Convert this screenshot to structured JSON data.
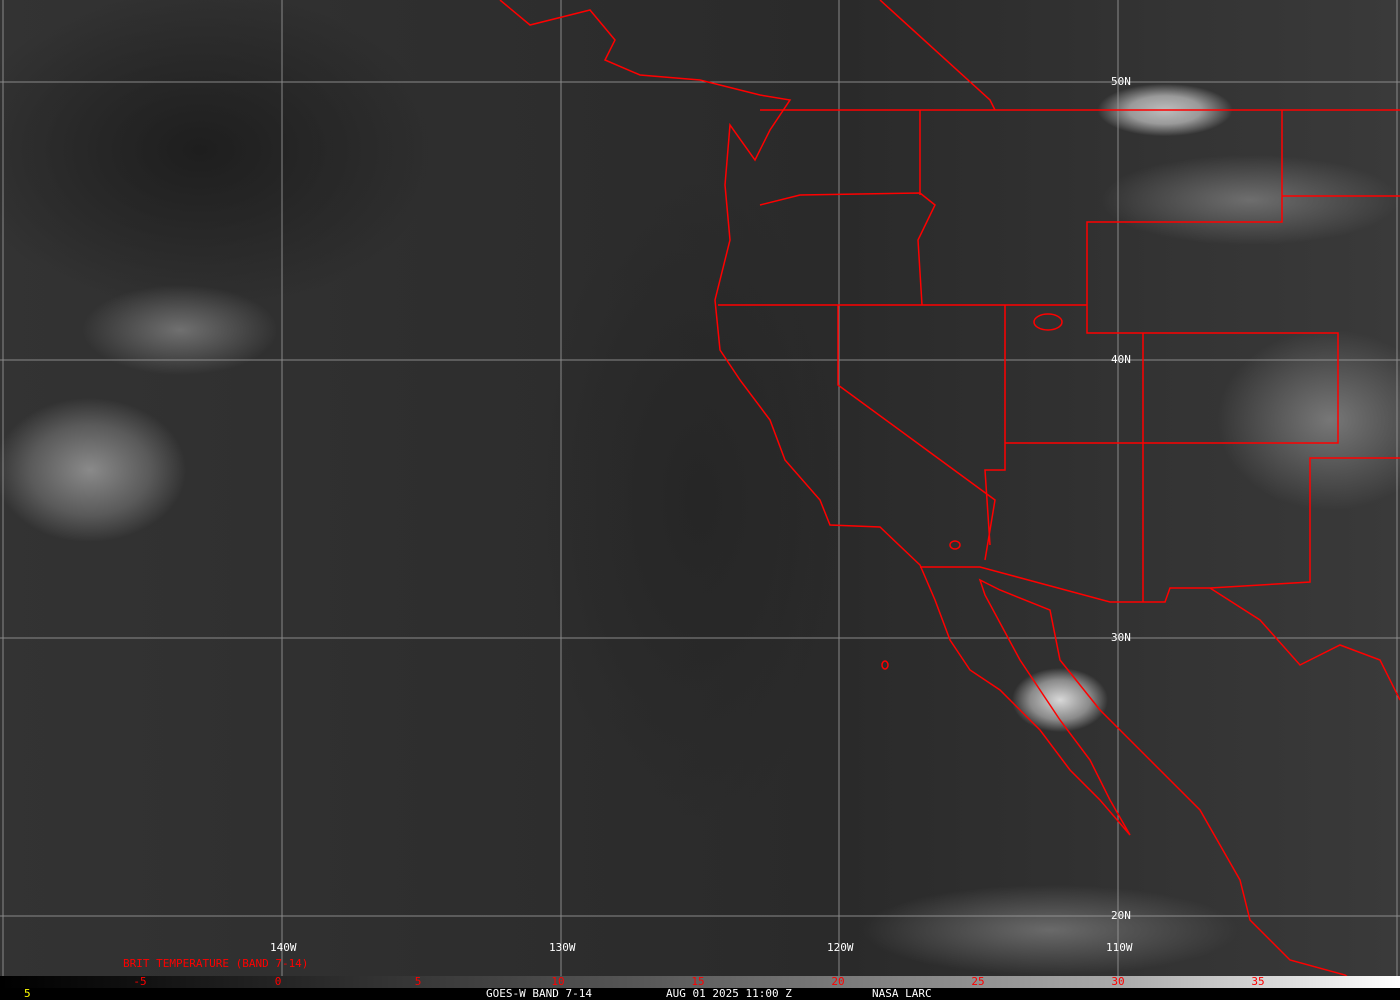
{
  "map": {
    "type": "satellite-infrared",
    "border_color": "#ff0000",
    "grid_color": "#a0a0a0"
  },
  "longitude_labels": [
    "140W",
    "130W",
    "120W",
    "110W"
  ],
  "latitude_labels": [
    "50N",
    "40N",
    "30N",
    "20N"
  ],
  "legend": {
    "title": "BRIT TEMPERATURE (BAND 7-14)",
    "ticks": [
      "-5",
      "0",
      "5",
      "10",
      "15",
      "20",
      "25",
      "30",
      "35"
    ],
    "tick_color": "#ff0000"
  },
  "footer": {
    "left_value": "5",
    "left_color": "#ffff00",
    "satellite": "GOES-W BAND 7-14",
    "datetime": "AUG 01 2025 11:00 Z",
    "source": "NASA LARC"
  }
}
